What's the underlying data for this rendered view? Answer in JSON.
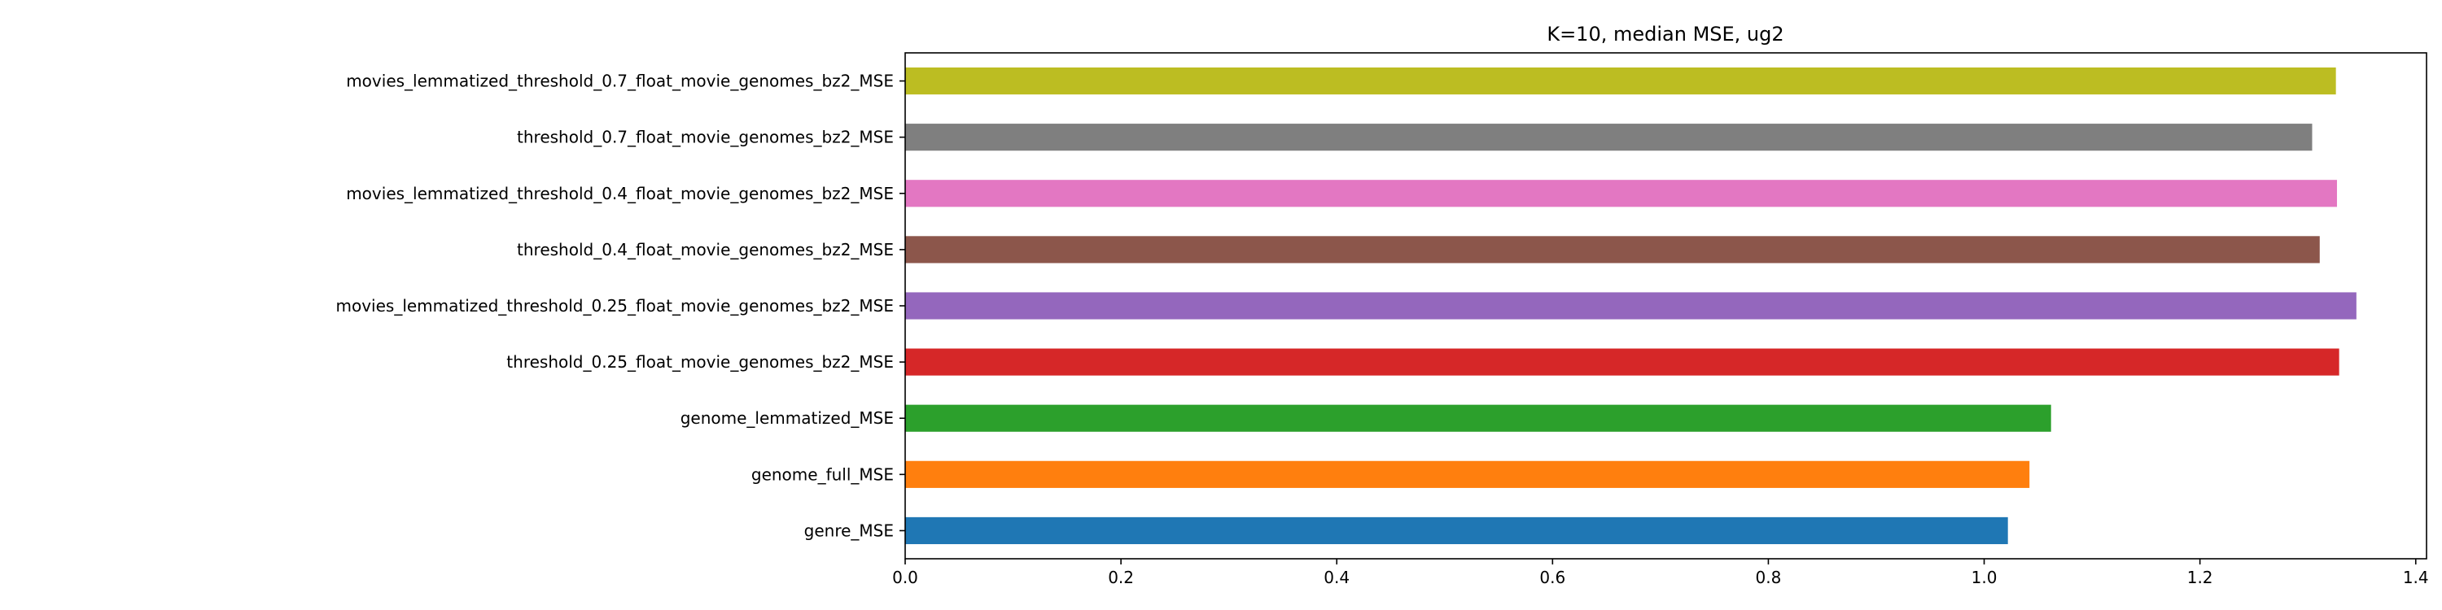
{
  "chart_data": {
    "type": "bar",
    "orientation": "horizontal",
    "title": "K=10, median MSE, ug2",
    "xlabel": "",
    "ylabel": "",
    "xlim": [
      0,
      1.41
    ],
    "xticks": [
      "0.0",
      "0.2",
      "0.4",
      "0.6",
      "0.8",
      "1.0",
      "1.2",
      "1.4"
    ],
    "grid": false,
    "categories": [
      "genre_MSE",
      "genome_full_MSE",
      "genome_lemmatized_MSE",
      "threshold_0.25_float_movie_genomes_bz2_MSE",
      "movies_lemmatized_threshold_0.25_float_movie_genomes_bz2_MSE",
      "threshold_0.4_float_movie_genomes_bz2_MSE",
      "movies_lemmatized_threshold_0.4_float_movie_genomes_bz2_MSE",
      "threshold_0.7_float_movie_genomes_bz2_MSE",
      "movies_lemmatized_threshold_0.7_float_movie_genomes_bz2_MSE"
    ],
    "values": [
      1.022,
      1.042,
      1.062,
      1.329,
      1.345,
      1.311,
      1.327,
      1.304,
      1.326
    ],
    "colors": [
      "#1f77b4",
      "#ff7f0e",
      "#2ca02c",
      "#d62728",
      "#9467bd",
      "#8c564b",
      "#e377c2",
      "#7f7f7f",
      "#bcbd22"
    ]
  }
}
